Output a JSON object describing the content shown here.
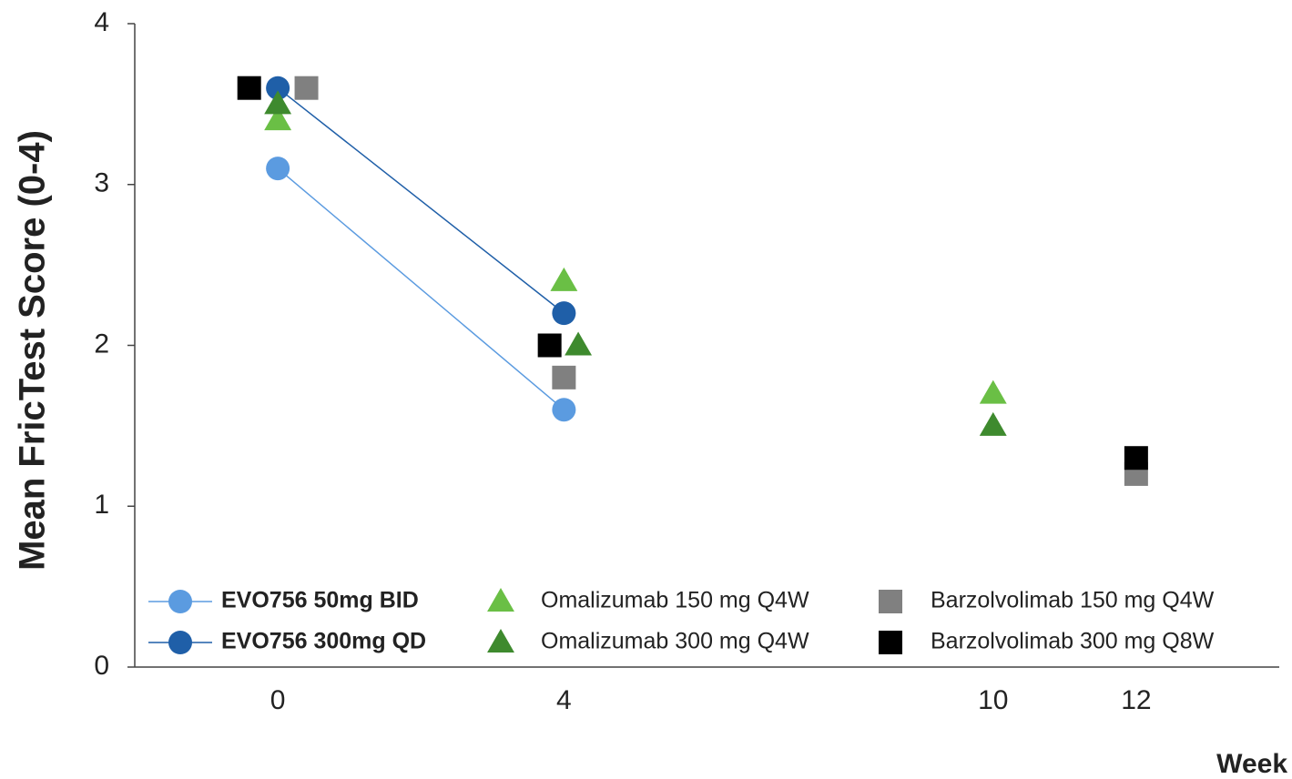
{
  "chart_data": {
    "type": "scatter",
    "y_label": "Mean FricTest Score (0-4)",
    "x_label": "Week",
    "xlim": [
      -2,
      14
    ],
    "xticks": [
      0,
      4,
      10,
      12
    ],
    "ylim": [
      0,
      4
    ],
    "yticks": [
      0,
      1,
      2,
      3,
      4
    ],
    "series": [
      {
        "name": "EVO756 50mg BID",
        "color": "#5b9be0",
        "marker": "circle",
        "line": true,
        "x": [
          0,
          4
        ],
        "values": [
          3.1,
          1.6
        ]
      },
      {
        "name": "EVO756 300mg QD",
        "color": "#1f5fa8",
        "marker": "circle",
        "line": true,
        "x": [
          0,
          4
        ],
        "values": [
          3.6,
          2.2
        ]
      },
      {
        "name": "Omalizumab 150 mg Q4W",
        "color": "#6abf45",
        "marker": "triangle",
        "line": false,
        "x": [
          0,
          4,
          10
        ],
        "values": [
          3.4,
          2.4,
          1.7
        ]
      },
      {
        "name": "Omalizumab 300 mg Q4W",
        "color": "#3e8a2e",
        "marker": "triangle",
        "line": false,
        "x": [
          0,
          4.2,
          10
        ],
        "values": [
          3.5,
          2.0,
          1.5
        ]
      },
      {
        "name": "Barzolvolimab 150 mg Q4W",
        "color": "#808080",
        "marker": "square",
        "line": false,
        "x": [
          0.4,
          4,
          12
        ],
        "values": [
          3.6,
          1.8,
          1.2
        ]
      },
      {
        "name": "Barzolvolimab 300 mg Q8W",
        "color": "#000000",
        "marker": "square",
        "line": false,
        "x": [
          -0.4,
          3.8,
          12
        ],
        "values": [
          3.6,
          2.0,
          1.3
        ]
      }
    ]
  }
}
